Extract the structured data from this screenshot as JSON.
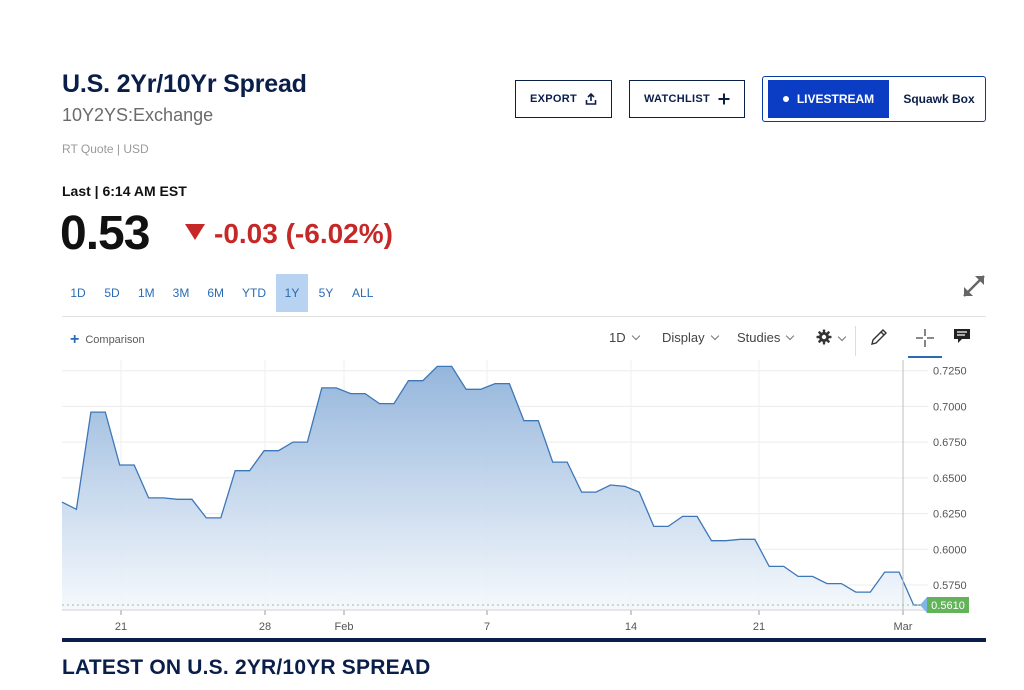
{
  "header": {
    "title": "U.S. 2Yr/10Yr Spread",
    "symbol": "10Y2YS:Exchange",
    "quote_meta": "RT Quote | USD",
    "last_label": "Last | 6:14 AM EST",
    "price": "0.53",
    "change": "-0.03 (-6.02%)",
    "change_color": "#c62828"
  },
  "actions": {
    "export_label": "EXPORT",
    "export_icon": "share-upload-icon",
    "watchlist_label": "WATCHLIST",
    "watchlist_icon": "plus-icon",
    "livestream_label": "LIVESTREAM",
    "squawk_label": "Squawk Box",
    "brand_color": "#0b3dc4"
  },
  "range_tabs": [
    "1D",
    "5D",
    "1M",
    "3M",
    "6M",
    "YTD",
    "1Y",
    "5Y",
    "ALL"
  ],
  "active_range": "1Y",
  "toolbar": {
    "comparison_label": "Comparison",
    "interval_label": "1D",
    "display_label": "Display",
    "studies_label": "Studies",
    "icons": [
      "gear-icon",
      "pencil-icon",
      "crosshair-icon",
      "comment-icon",
      "expand-icon"
    ]
  },
  "section": {
    "latest_heading": "LATEST ON U.S. 2YR/10YR SPREAD"
  },
  "chart_data": {
    "type": "area",
    "ylim": [
      0.5575,
      0.7325
    ],
    "y_ticks": [
      "0.7250",
      "0.7000",
      "0.6750",
      "0.6500",
      "0.6250",
      "0.6000",
      "0.5750"
    ],
    "x_ticks": [
      "21",
      "28",
      "Feb",
      "7",
      "14",
      "21",
      "Mar"
    ],
    "current_value_label": "0.5610",
    "colors": {
      "line": "#3d77b8",
      "fill_top": "#8fb2da",
      "fill_bottom": "#f4f8fc",
      "value_tag": "#62b35a"
    },
    "series": [
      {
        "values": [
          0.633,
          0.628,
          0.696,
          0.696,
          0.659,
          0.659,
          0.636,
          0.636,
          0.635,
          0.635,
          0.622,
          0.622,
          0.655,
          0.655,
          0.669,
          0.669,
          0.675,
          0.675,
          0.713,
          0.713,
          0.709,
          0.709,
          0.702,
          0.702,
          0.718,
          0.718,
          0.728,
          0.728,
          0.712,
          0.712,
          0.716,
          0.716,
          0.69,
          0.69,
          0.661,
          0.661,
          0.64,
          0.64,
          0.645,
          0.644,
          0.64,
          0.616,
          0.616,
          0.623,
          0.623,
          0.606,
          0.606,
          0.607,
          0.607,
          0.588,
          0.588,
          0.581,
          0.581,
          0.576,
          0.576,
          0.57,
          0.57,
          0.584,
          0.584,
          0.561,
          0.561
        ]
      }
    ]
  }
}
